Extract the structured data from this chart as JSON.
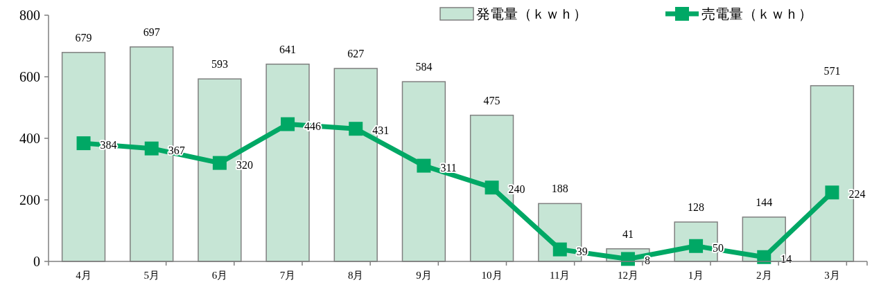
{
  "chart_data": {
    "type": "bar",
    "categories": [
      "4月",
      "5月",
      "6月",
      "7月",
      "8月",
      "9月",
      "10月",
      "11月",
      "12月",
      "1月",
      "2月",
      "3月"
    ],
    "series": [
      {
        "name": "発電量（ｋｗｈ）",
        "color": "#c6e5d5",
        "values": [
          679,
          697,
          593,
          641,
          627,
          584,
          475,
          188,
          41,
          128,
          144,
          571
        ]
      },
      {
        "name": "売電量（ｋｗｈ）",
        "type": "line",
        "color": "#00a865",
        "values": [
          384,
          367,
          320,
          446,
          431,
          311,
          240,
          39,
          8,
          50,
          14,
          224
        ]
      }
    ],
    "ylim": [
      0,
      800
    ],
    "yticks": [
      0,
      200,
      400,
      600,
      800
    ],
    "grid": false,
    "legend": "top right",
    "marker": "square",
    "line_style": "solid",
    "data_labels": true
  }
}
